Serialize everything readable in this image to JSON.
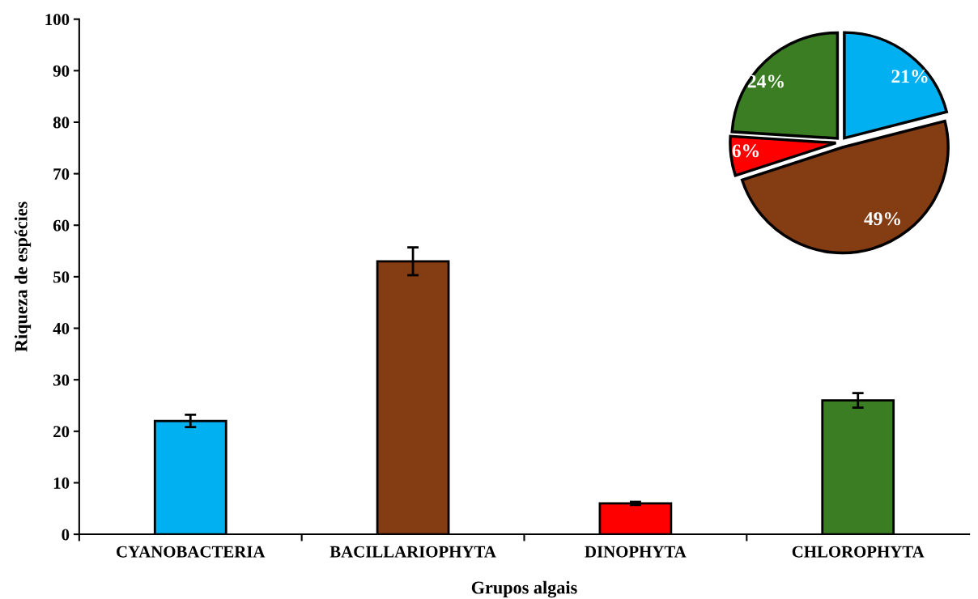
{
  "chart_data": [
    {
      "type": "bar",
      "xlabel": "Grupos algais",
      "ylabel": "Riqueza de espécies",
      "categories": [
        "CYANOBACTERIA",
        "BACILLARIOPHYTA",
        "DINOPHYTA",
        "CHLOROPHYTA"
      ],
      "values": [
        22,
        53,
        6,
        26
      ],
      "colors": [
        "#00b0f0",
        "#843c12",
        "#ff0000",
        "#3b7d23"
      ],
      "errors": [
        1.2,
        2.7,
        0.3,
        1.4
      ],
      "ylim": [
        0,
        100
      ],
      "yticks": [
        0,
        10,
        20,
        30,
        40,
        50,
        60,
        70,
        80,
        90,
        100
      ],
      "grid": false
    },
    {
      "type": "pie",
      "categories": [
        null,
        null,
        null,
        null
      ],
      "values": [
        21,
        49,
        6,
        24
      ],
      "value_labels": [
        "21%",
        "49%",
        "6%",
        "24%"
      ],
      "colors": [
        "#00b0f0",
        "#843c12",
        "#ff0000",
        "#3b7d23"
      ]
    }
  ]
}
